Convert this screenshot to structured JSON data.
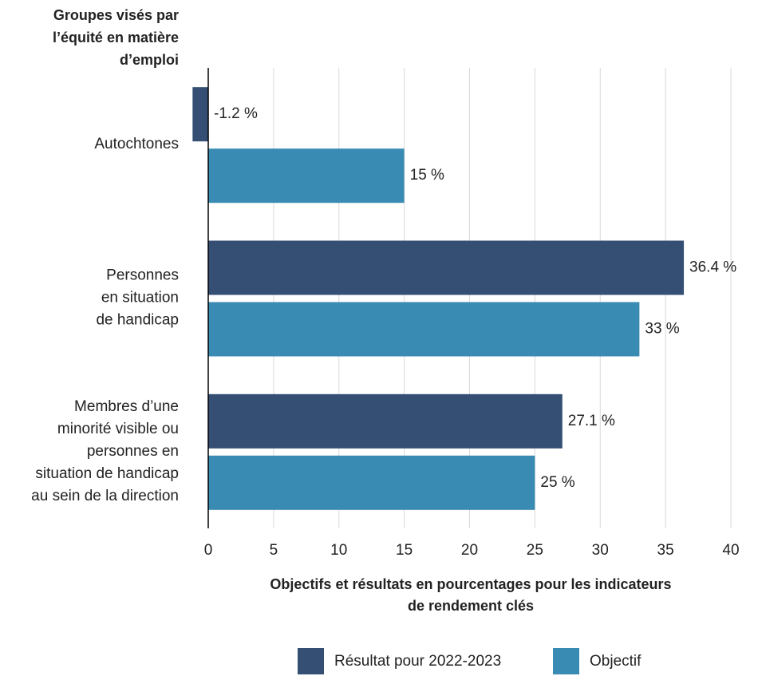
{
  "chart_data": {
    "type": "bar",
    "orientation": "horizontal",
    "y_label": [
      "Groupes visés par",
      "l’équité en matière",
      "d’emploi"
    ],
    "x_label": [
      "Objectifs et résultats en pourcentages pour les indicateurs",
      "de rendement clés"
    ],
    "categories": [
      [
        "Autochtones"
      ],
      [
        "Personnes",
        "en situation",
        "de handicap"
      ],
      [
        "Membres d’une",
        "minorité visible ou",
        "personnes en",
        "situation de handicap",
        "au sein de la direction"
      ]
    ],
    "series": [
      {
        "name": "Résultat pour 2022-2023",
        "color": "#344e74",
        "values": [
          -1.2,
          36.4,
          27.1
        ],
        "value_labels": [
          "-1.2 %",
          "36.4 %",
          "27.1 %"
        ]
      },
      {
        "name": "Objectif",
        "color": "#3a8bb3",
        "values": [
          15,
          33,
          25
        ],
        "value_labels": [
          "15 %",
          "33 %",
          "25 %"
        ]
      }
    ],
    "xlim": [
      -1.2,
      40
    ],
    "xticks": [
      0,
      5,
      10,
      15,
      20,
      25,
      30,
      35,
      40
    ],
    "grid": true,
    "legend": "bottom"
  }
}
